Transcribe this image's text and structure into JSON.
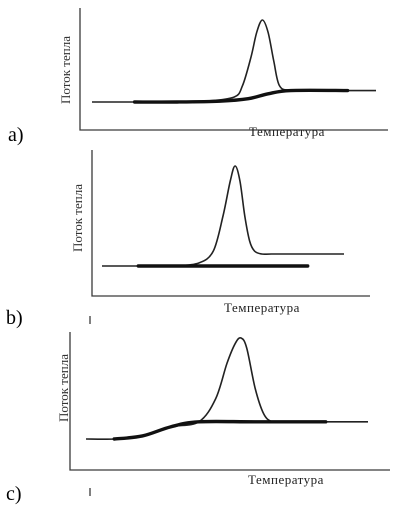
{
  "chart_data": [
    {
      "panel_label": "a)",
      "type": "line",
      "ylabel": "Поток тепла",
      "xlabel": "Температура",
      "series": [
        {
          "x": [
            0,
            10,
            20,
            30,
            40,
            50,
            53,
            56,
            58,
            60,
            62,
            64,
            66,
            70,
            80,
            90,
            100
          ],
          "y": [
            0,
            0,
            0,
            0,
            0.01,
            0.06,
            0.2,
            0.55,
            0.85,
            1.0,
            0.85,
            0.5,
            0.2,
            0.14,
            0.14,
            0.14,
            0.14
          ]
        },
        {
          "x": [
            15,
            30,
            45,
            55,
            62,
            70,
            90
          ],
          "y": [
            0,
            0,
            0.01,
            0.04,
            0.1,
            0.14,
            0.14
          ]
        }
      ]
    },
    {
      "panel_label": "b)",
      "type": "line",
      "ylabel": "Поток тепла",
      "xlabel": "Температура",
      "series": [
        {
          "x": [
            0,
            10,
            20,
            30,
            40,
            46,
            50,
            53,
            55,
            57,
            59,
            61,
            63,
            66,
            70,
            80,
            100
          ],
          "y": [
            0,
            0,
            0,
            0,
            0.03,
            0.15,
            0.5,
            0.85,
            1.0,
            0.85,
            0.5,
            0.25,
            0.15,
            0.12,
            0.12,
            0.12,
            0.12
          ]
        },
        {
          "x": [
            15,
            40,
            60,
            85
          ],
          "y": [
            0,
            0,
            0,
            0
          ]
        }
      ]
    },
    {
      "panel_label": "c)",
      "type": "line",
      "ylabel": "Поток тепла",
      "xlabel": "Температура",
      "series": [
        {
          "x": [
            0,
            10,
            20,
            30,
            40,
            46,
            50,
            53,
            55,
            57,
            60,
            63,
            66,
            70,
            80,
            100
          ],
          "y": [
            0,
            0,
            0.03,
            0.12,
            0.17,
            0.4,
            0.75,
            0.95,
            1.0,
            0.9,
            0.5,
            0.25,
            0.17,
            0.17,
            0.17,
            0.17
          ]
        },
        {
          "x": [
            10,
            20,
            30,
            40,
            60,
            85
          ],
          "y": [
            0,
            0.03,
            0.12,
            0.17,
            0.17,
            0.17
          ]
        }
      ]
    }
  ]
}
